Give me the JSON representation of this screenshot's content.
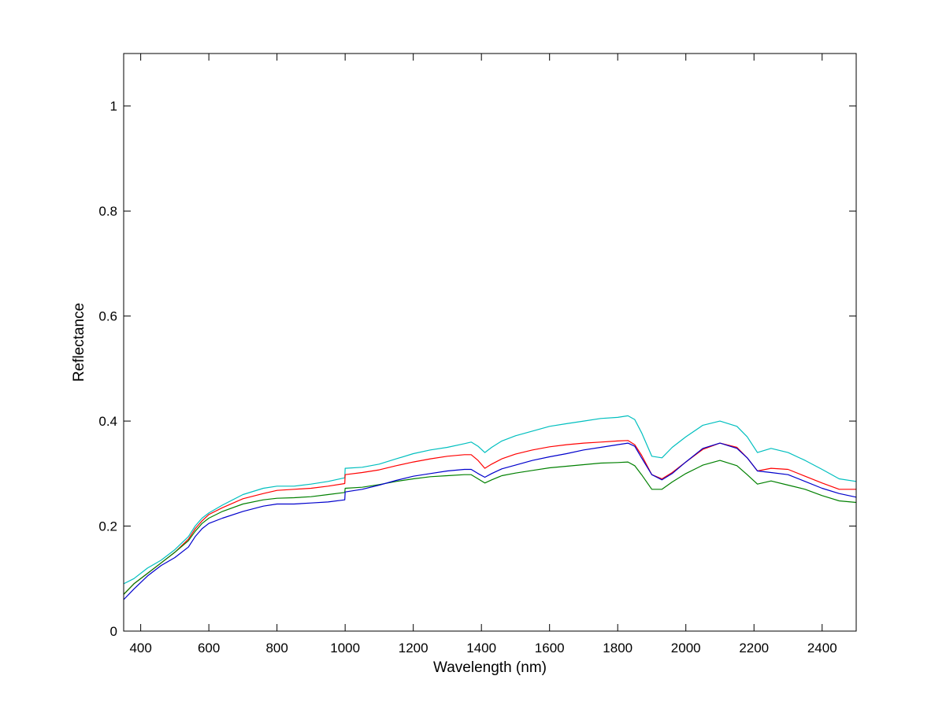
{
  "chart_data": {
    "type": "line",
    "title": "",
    "xlabel": "Wavelength (nm)",
    "ylabel": "Reflectance",
    "xlim": [
      350,
      2500
    ],
    "ylim": [
      0,
      1.1
    ],
    "xticks": [
      400,
      600,
      800,
      1000,
      1200,
      1400,
      1600,
      1800,
      2000,
      2200,
      2400
    ],
    "yticks": [
      0,
      0.2,
      0.4,
      0.6,
      0.8,
      1
    ],
    "ytick_labels": [
      "0",
      "0.2",
      "0.4",
      "0.6",
      "0.8",
      "1"
    ],
    "grid": false,
    "legend": "none",
    "series": [
      {
        "color": "#00bfbf",
        "x": [
          350,
          380,
          420,
          460,
          500,
          540,
          560,
          580,
          600,
          640,
          700,
          760,
          800,
          850,
          900,
          950,
          999,
          1000,
          1050,
          1100,
          1150,
          1200,
          1250,
          1300,
          1350,
          1370,
          1390,
          1410,
          1430,
          1460,
          1500,
          1550,
          1600,
          1650,
          1700,
          1750,
          1800,
          1830,
          1850,
          1870,
          1900,
          1930,
          1960,
          2000,
          2050,
          2100,
          2150,
          2180,
          2210,
          2250,
          2300,
          2350,
          2400,
          2450,
          2500
        ],
        "values": [
          0.09,
          0.1,
          0.12,
          0.135,
          0.155,
          0.18,
          0.2,
          0.215,
          0.225,
          0.24,
          0.26,
          0.272,
          0.276,
          0.276,
          0.28,
          0.285,
          0.292,
          0.31,
          0.312,
          0.318,
          0.328,
          0.338,
          0.345,
          0.35,
          0.357,
          0.36,
          0.352,
          0.34,
          0.35,
          0.362,
          0.372,
          0.381,
          0.39,
          0.395,
          0.4,
          0.405,
          0.407,
          0.41,
          0.403,
          0.378,
          0.333,
          0.33,
          0.35,
          0.37,
          0.392,
          0.4,
          0.39,
          0.37,
          0.34,
          0.348,
          0.34,
          0.325,
          0.308,
          0.29,
          0.285
        ]
      },
      {
        "color": "#ff0000",
        "x": [
          350,
          380,
          420,
          460,
          500,
          540,
          560,
          580,
          600,
          640,
          700,
          760,
          800,
          850,
          900,
          950,
          999,
          1000,
          1050,
          1100,
          1150,
          1200,
          1250,
          1300,
          1350,
          1370,
          1390,
          1410,
          1430,
          1460,
          1500,
          1550,
          1600,
          1650,
          1700,
          1750,
          1800,
          1830,
          1850,
          1870,
          1900,
          1930,
          1960,
          2000,
          2050,
          2100,
          2150,
          2180,
          2210,
          2250,
          2300,
          2350,
          2400,
          2450,
          2500
        ],
        "values": [
          0.07,
          0.09,
          0.11,
          0.13,
          0.15,
          0.175,
          0.195,
          0.21,
          0.222,
          0.235,
          0.252,
          0.262,
          0.268,
          0.27,
          0.272,
          0.276,
          0.281,
          0.298,
          0.302,
          0.307,
          0.315,
          0.322,
          0.328,
          0.333,
          0.336,
          0.336,
          0.325,
          0.31,
          0.318,
          0.328,
          0.337,
          0.345,
          0.351,
          0.355,
          0.358,
          0.36,
          0.362,
          0.363,
          0.355,
          0.335,
          0.298,
          0.29,
          0.302,
          0.322,
          0.346,
          0.358,
          0.35,
          0.33,
          0.305,
          0.31,
          0.308,
          0.295,
          0.282,
          0.27,
          0.27
        ]
      },
      {
        "color": "#008000",
        "x": [
          350,
          380,
          420,
          460,
          500,
          540,
          560,
          580,
          600,
          640,
          700,
          760,
          800,
          850,
          900,
          950,
          999,
          1000,
          1050,
          1100,
          1150,
          1200,
          1250,
          1300,
          1350,
          1370,
          1390,
          1410,
          1430,
          1460,
          1500,
          1550,
          1600,
          1650,
          1700,
          1750,
          1800,
          1830,
          1850,
          1870,
          1900,
          1930,
          1960,
          2000,
          2050,
          2100,
          2150,
          2180,
          2210,
          2250,
          2300,
          2350,
          2400,
          2450,
          2500
        ],
        "values": [
          0.07,
          0.09,
          0.11,
          0.13,
          0.15,
          0.172,
          0.19,
          0.205,
          0.215,
          0.228,
          0.242,
          0.25,
          0.253,
          0.254,
          0.256,
          0.26,
          0.264,
          0.272,
          0.274,
          0.279,
          0.285,
          0.29,
          0.294,
          0.296,
          0.298,
          0.298,
          0.29,
          0.282,
          0.288,
          0.296,
          0.301,
          0.306,
          0.311,
          0.314,
          0.317,
          0.32,
          0.321,
          0.322,
          0.315,
          0.298,
          0.27,
          0.27,
          0.284,
          0.3,
          0.316,
          0.325,
          0.315,
          0.298,
          0.28,
          0.286,
          0.278,
          0.27,
          0.258,
          0.248,
          0.245
        ]
      },
      {
        "color": "#0000cc",
        "x": [
          350,
          380,
          420,
          460,
          500,
          540,
          560,
          580,
          600,
          640,
          700,
          760,
          800,
          850,
          900,
          950,
          999,
          1000,
          1050,
          1100,
          1150,
          1200,
          1250,
          1300,
          1350,
          1370,
          1390,
          1410,
          1430,
          1460,
          1500,
          1550,
          1600,
          1650,
          1700,
          1750,
          1800,
          1830,
          1850,
          1870,
          1900,
          1930,
          1960,
          2000,
          2050,
          2100,
          2150,
          2180,
          2210,
          2250,
          2300,
          2350,
          2400,
          2450,
          2500
        ],
        "values": [
          0.06,
          0.08,
          0.105,
          0.125,
          0.14,
          0.16,
          0.18,
          0.195,
          0.205,
          0.215,
          0.228,
          0.238,
          0.242,
          0.242,
          0.244,
          0.246,
          0.25,
          0.265,
          0.27,
          0.278,
          0.287,
          0.295,
          0.3,
          0.305,
          0.308,
          0.308,
          0.3,
          0.293,
          0.3,
          0.309,
          0.316,
          0.325,
          0.332,
          0.338,
          0.345,
          0.35,
          0.355,
          0.358,
          0.352,
          0.33,
          0.298,
          0.288,
          0.3,
          0.322,
          0.348,
          0.358,
          0.348,
          0.33,
          0.305,
          0.302,
          0.298,
          0.285,
          0.272,
          0.262,
          0.255
        ]
      }
    ]
  }
}
